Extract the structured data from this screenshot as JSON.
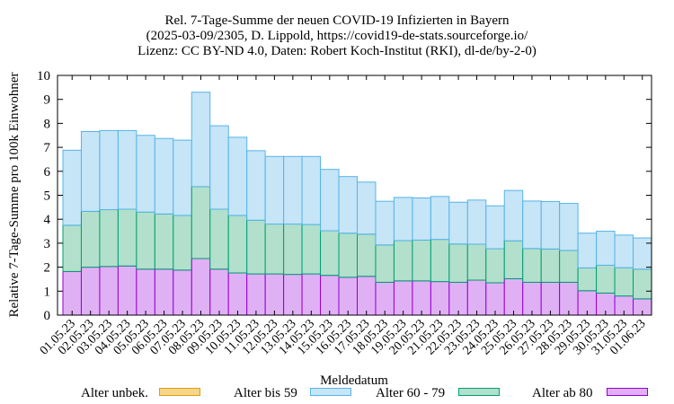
{
  "chart_data": {
    "type": "bar",
    "stacked": true,
    "title": [
      "Rel. 7-Tage-Summe der neuen COVID-19 Infizierten in Bayern",
      "(2025-03-09/2305, D. Lippold, https://covid19-de-stats.sourceforge.io/",
      "Lizenz: CC BY-ND 4.0, Daten: Robert Koch-Institut (RKI), dl-de/by-2-0)"
    ],
    "xlabel": "Meldedatum",
    "ylabel": "Relative 7-Tage-Summe pro 100k Einwohner",
    "ylim": [
      0,
      10
    ],
    "yticks": [
      "0",
      "1",
      "2",
      "3",
      "4",
      "5",
      "6",
      "7",
      "8",
      "9",
      "10"
    ],
    "grid": false,
    "legend_position": "bottom",
    "categories": [
      "01.05.23",
      "02.05.23",
      "03.05.23",
      "04.05.23",
      "05.05.23",
      "06.05.23",
      "07.05.23",
      "08.05.23",
      "09.05.23",
      "10.05.23",
      "11.05.23",
      "12.05.23",
      "13.05.23",
      "14.05.23",
      "15.05.23",
      "16.05.23",
      "17.05.23",
      "18.05.23",
      "19.05.23",
      "20.05.23",
      "21.05.23",
      "22.05.23",
      "23.05.23",
      "24.05.23",
      "25.05.23",
      "26.05.23",
      "27.05.23",
      "28.05.23",
      "29.05.23",
      "30.05.23",
      "31.05.23",
      "01.06.23"
    ],
    "series": [
      {
        "name": "Alter unbek.",
        "color": "#f5d68c",
        "edge": "#e0a000",
        "values": [
          0,
          0,
          0,
          0,
          0,
          0,
          0,
          0,
          0,
          0,
          0,
          0,
          0,
          0,
          0,
          0,
          0,
          0,
          0,
          0,
          0,
          0,
          0,
          0,
          0,
          0,
          0,
          0,
          0,
          0,
          0,
          0
        ]
      },
      {
        "name": "Alter ab 80",
        "color": "#e0b0f5",
        "edge": "#9400d3",
        "values": [
          1.82,
          2.0,
          2.03,
          2.05,
          1.92,
          1.92,
          1.88,
          2.36,
          1.92,
          1.76,
          1.72,
          1.72,
          1.7,
          1.72,
          1.66,
          1.58,
          1.62,
          1.37,
          1.43,
          1.43,
          1.4,
          1.37,
          1.46,
          1.35,
          1.52,
          1.37,
          1.37,
          1.37,
          1.02,
          0.92,
          0.8,
          0.68
        ]
      },
      {
        "name": "Alter 60 - 79",
        "color": "#b2e0cc",
        "edge": "#009e73",
        "values": [
          1.93,
          2.33,
          2.37,
          2.37,
          2.38,
          2.3,
          2.28,
          3.0,
          2.5,
          2.4,
          2.24,
          2.08,
          2.1,
          2.06,
          1.86,
          1.84,
          1.76,
          1.56,
          1.68,
          1.7,
          1.76,
          1.6,
          1.5,
          1.42,
          1.58,
          1.41,
          1.39,
          1.33,
          0.95,
          1.16,
          1.18,
          1.24
        ]
      },
      {
        "name": "Alter bis 59",
        "color": "#c6e5f7",
        "edge": "#56b4e9",
        "values": [
          3.13,
          3.33,
          3.3,
          3.28,
          3.2,
          3.15,
          3.14,
          3.94,
          3.48,
          3.26,
          2.9,
          2.82,
          2.82,
          2.84,
          2.56,
          2.36,
          2.17,
          1.82,
          1.8,
          1.76,
          1.79,
          1.74,
          1.84,
          1.79,
          2.1,
          1.98,
          1.98,
          1.96,
          1.45,
          1.42,
          1.36,
          1.3
        ]
      }
    ]
  },
  "legend": {
    "items": [
      {
        "label": "Alter unbek.",
        "color": "#f5d68c",
        "edge": "#e0a000"
      },
      {
        "label": "Alter bis 59",
        "color": "#c6e5f7",
        "edge": "#56b4e9"
      },
      {
        "label": "Alter 60 - 79",
        "color": "#b2e0cc",
        "edge": "#009e73"
      },
      {
        "label": "Alter ab 80",
        "color": "#e0b0f5",
        "edge": "#9400d3"
      }
    ]
  }
}
